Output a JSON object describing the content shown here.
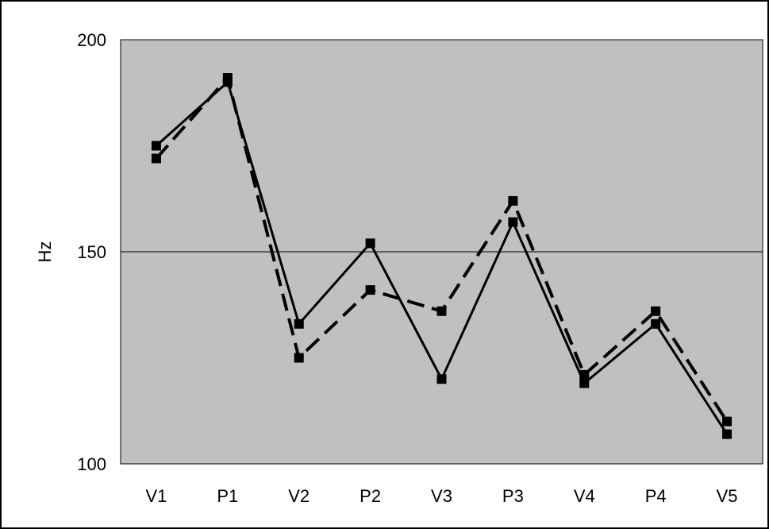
{
  "chart_data": {
    "type": "line",
    "title": "",
    "xlabel": "",
    "ylabel": "Hz",
    "categories": [
      "V1",
      "P1",
      "V2",
      "P2",
      "V3",
      "P3",
      "V4",
      "P4",
      "V5"
    ],
    "ylim": [
      100,
      200
    ],
    "yticks": [
      100,
      150,
      200
    ],
    "grid": "horizontal line at 150",
    "legend": "none",
    "colors": {
      "plot_background": "#c0c0c0",
      "line": "#000000",
      "frame": "#000000"
    },
    "series": [
      {
        "style": "solid",
        "values": [
          175,
          190,
          133,
          152,
          120,
          157,
          119,
          133,
          107
        ]
      },
      {
        "style": "dashed",
        "values": [
          172,
          191,
          125,
          141,
          136,
          162,
          121,
          136,
          110
        ]
      }
    ]
  }
}
